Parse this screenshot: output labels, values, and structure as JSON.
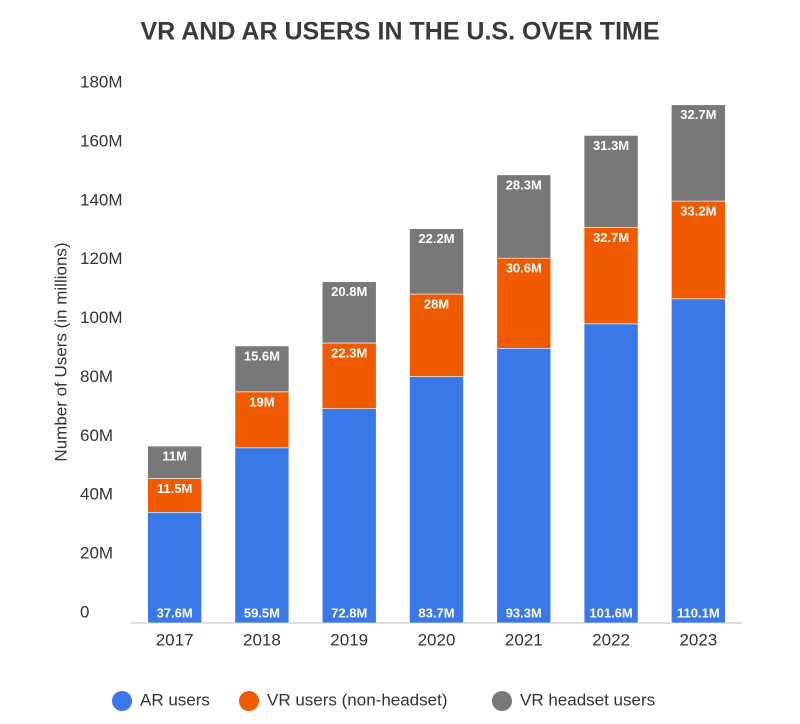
{
  "chart_data": {
    "type": "stacked_bar",
    "title": "VR AND AR USERS IN THE U.S. OVER TIME",
    "y_label": "Number of Users (in millions)",
    "categories": [
      "2017",
      "2018",
      "2019",
      "2020",
      "2021",
      "2022",
      "2023"
    ],
    "series": [
      {
        "name": "AR users",
        "color": "#3b78e7",
        "values": [
          37.6,
          59.5,
          72.8,
          83.7,
          93.3,
          101.6,
          110.1
        ],
        "value_labels": [
          "37.6M",
          "59.5M",
          "72.8M",
          "83.7M",
          "93.3M",
          "101.6M",
          "110.1M"
        ]
      },
      {
        "name": "VR users (non-headset)",
        "color": "#f05a00",
        "values": [
          11.5,
          19,
          22.3,
          28,
          30.6,
          32.7,
          33.2
        ],
        "value_labels": [
          "11.5M",
          "19M",
          "22.3M",
          "28M",
          "30.6M",
          "32.7M",
          "33.2M"
        ]
      },
      {
        "name": "VR headset users",
        "color": "#787878",
        "values": [
          11,
          15.6,
          20.8,
          22.2,
          28.3,
          31.3,
          32.7
        ],
        "value_labels": [
          "11M",
          "15.6M",
          "20.8M",
          "22.2M",
          "28.3M",
          "31.3M",
          "32.7M"
        ]
      }
    ],
    "ylim": [
      0,
      180
    ],
    "yticks": [
      0,
      {
        "value": 20,
        "label": "20M"
      },
      {
        "value": 40,
        "label": "40M"
      },
      {
        "value": 60,
        "label": "60M"
      },
      {
        "value": 80,
        "label": "80M"
      },
      {
        "value": 100,
        "label": "100M"
      },
      {
        "value": 120,
        "label": "120M"
      },
      {
        "value": 140,
        "label": "140M"
      },
      {
        "value": 160,
        "label": "160M"
      },
      {
        "value": 180,
        "label": "180M"
      }
    ],
    "grid": false,
    "legend": "bottom"
  }
}
